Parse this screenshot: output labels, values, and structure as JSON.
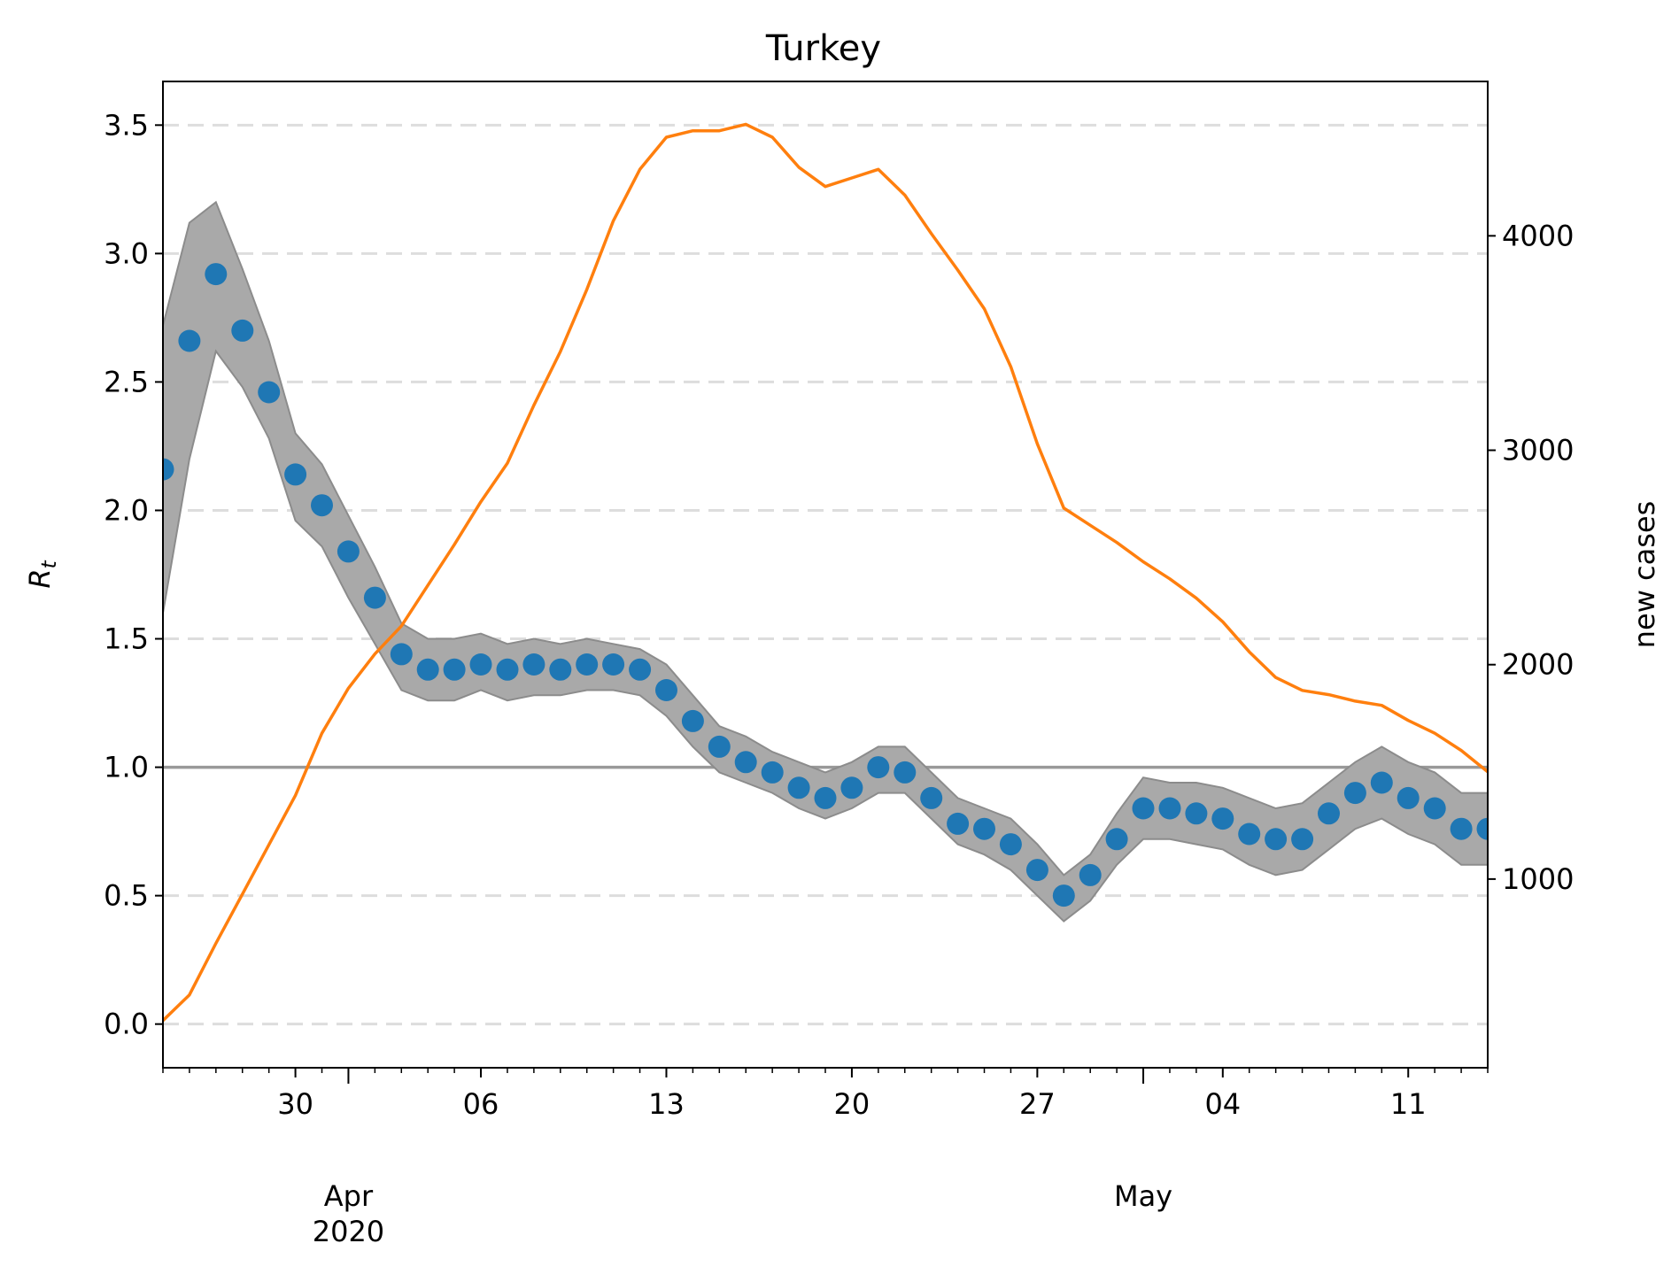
{
  "chart_data": {
    "type": "line",
    "title": "Turkey",
    "ylabel_left": "R",
    "ylabel_left_sub": "t",
    "ylabel_right": "new cases",
    "ylim_left": [
      -0.17,
      3.67
    ],
    "ylim_right": [
      120,
      4720
    ],
    "x_start": "2020-03-25",
    "x_end": "2020-05-14",
    "yticks_left": [
      "0.0",
      "0.5",
      "1.0",
      "1.5",
      "2.0",
      "2.5",
      "3.0",
      "3.5"
    ],
    "yticks_right": [
      "1000",
      "2000",
      "3000",
      "4000"
    ],
    "x_minor_tick_labels": [
      {
        "date": "2020-03-30",
        "label": "30"
      },
      {
        "date": "2020-04-06",
        "label": "06"
      },
      {
        "date": "2020-04-13",
        "label": "13"
      },
      {
        "date": "2020-04-20",
        "label": "20"
      },
      {
        "date": "2020-04-27",
        "label": "27"
      },
      {
        "date": "2020-05-04",
        "label": "04"
      },
      {
        "date": "2020-05-11",
        "label": "11"
      }
    ],
    "x_major_tick_labels": [
      {
        "date": "2020-04-01",
        "label": "Apr\n2020"
      },
      {
        "date": "2020-05-01",
        "label": "May"
      }
    ],
    "grid": "horizontal dashed",
    "reference_line": 1.0,
    "colors": {
      "rt_points": "#1f77b4",
      "band": "#a9a9a9",
      "band_edge": "#8c8c8c",
      "cases_line": "#ff7f0e",
      "reference": "#999999",
      "grid": "#dddddd"
    },
    "series": [
      {
        "kind": "points",
        "axis": "left",
        "dates": [
          "2020-03-25",
          "2020-03-26",
          "2020-03-27",
          "2020-03-28",
          "2020-03-29",
          "2020-03-30",
          "2020-03-31",
          "2020-04-01",
          "2020-04-02",
          "2020-04-03",
          "2020-04-04",
          "2020-04-05",
          "2020-04-06",
          "2020-04-07",
          "2020-04-08",
          "2020-04-09",
          "2020-04-10",
          "2020-04-11",
          "2020-04-12",
          "2020-04-13",
          "2020-04-14",
          "2020-04-15",
          "2020-04-16",
          "2020-04-17",
          "2020-04-18",
          "2020-04-19",
          "2020-04-20",
          "2020-04-21",
          "2020-04-22",
          "2020-04-23",
          "2020-04-24",
          "2020-04-25",
          "2020-04-26",
          "2020-04-27",
          "2020-04-28",
          "2020-04-29",
          "2020-04-30",
          "2020-05-01",
          "2020-05-02",
          "2020-05-03",
          "2020-05-04",
          "2020-05-05",
          "2020-05-06",
          "2020-05-07",
          "2020-05-08",
          "2020-05-09",
          "2020-05-10",
          "2020-05-11",
          "2020-05-12",
          "2020-05-13",
          "2020-05-14"
        ],
        "values": [
          2.16,
          2.66,
          2.92,
          2.7,
          2.46,
          2.14,
          2.02,
          1.84,
          1.66,
          1.44,
          1.38,
          1.38,
          1.4,
          1.38,
          1.4,
          1.38,
          1.4,
          1.4,
          1.38,
          1.3,
          1.18,
          1.08,
          1.02,
          0.98,
          0.92,
          0.88,
          0.92,
          1.0,
          0.98,
          0.88,
          0.78,
          0.76,
          0.7,
          0.6,
          0.5,
          0.58,
          0.72,
          0.84,
          0.84,
          0.82,
          0.8,
          0.74,
          0.72,
          0.72,
          0.82,
          0.9,
          0.94,
          0.88,
          0.84,
          0.76,
          0.76
        ],
        "lower": [
          1.6,
          2.2,
          2.62,
          2.48,
          2.28,
          1.96,
          1.86,
          1.66,
          1.48,
          1.3,
          1.26,
          1.26,
          1.3,
          1.26,
          1.28,
          1.28,
          1.3,
          1.3,
          1.28,
          1.2,
          1.08,
          0.98,
          0.94,
          0.9,
          0.84,
          0.8,
          0.84,
          0.9,
          0.9,
          0.8,
          0.7,
          0.66,
          0.6,
          0.5,
          0.4,
          0.48,
          0.62,
          0.72,
          0.72,
          0.7,
          0.68,
          0.62,
          0.58,
          0.6,
          0.68,
          0.76,
          0.8,
          0.74,
          0.7,
          0.62,
          0.62
        ],
        "upper": [
          2.72,
          3.12,
          3.2,
          2.94,
          2.66,
          2.3,
          2.18,
          1.98,
          1.78,
          1.56,
          1.5,
          1.5,
          1.52,
          1.48,
          1.5,
          1.48,
          1.5,
          1.48,
          1.46,
          1.4,
          1.28,
          1.16,
          1.12,
          1.06,
          1.02,
          0.98,
          1.02,
          1.08,
          1.08,
          0.98,
          0.88,
          0.84,
          0.8,
          0.7,
          0.58,
          0.66,
          0.82,
          0.96,
          0.94,
          0.94,
          0.92,
          0.88,
          0.84,
          0.86,
          0.94,
          1.02,
          1.08,
          1.02,
          0.98,
          0.9,
          0.9
        ]
      },
      {
        "kind": "line",
        "axis": "right",
        "dates": [
          "2020-03-25",
          "2020-03-26",
          "2020-03-27",
          "2020-03-28",
          "2020-03-29",
          "2020-03-30",
          "2020-03-31",
          "2020-04-01",
          "2020-04-02",
          "2020-04-03",
          "2020-04-04",
          "2020-04-05",
          "2020-04-06",
          "2020-04-07",
          "2020-04-08",
          "2020-04-09",
          "2020-04-10",
          "2020-04-11",
          "2020-04-12",
          "2020-04-13",
          "2020-04-14",
          "2020-04-15",
          "2020-04-16",
          "2020-04-17",
          "2020-04-18",
          "2020-04-19",
          "2020-04-20",
          "2020-04-21",
          "2020-04-22",
          "2020-04-23",
          "2020-04-24",
          "2020-04-25",
          "2020-04-26",
          "2020-04-27",
          "2020-04-28",
          "2020-04-29",
          "2020-04-30",
          "2020-05-01",
          "2020-05-02",
          "2020-05-03",
          "2020-05-04",
          "2020-05-05",
          "2020-05-06",
          "2020-05-07",
          "2020-05-08",
          "2020-05-09",
          "2020-05-10",
          "2020-05-11",
          "2020-05-12",
          "2020-05-13",
          "2020-05-14"
        ],
        "values": [
          340,
          460,
          700,
          930,
          1160,
          1390,
          1680,
          1890,
          2050,
          2180,
          2370,
          2560,
          2760,
          2940,
          3210,
          3460,
          3750,
          4070,
          4310,
          4460,
          4490,
          4490,
          4520,
          4460,
          4320,
          4230,
          4270,
          4310,
          4190,
          4010,
          3840,
          3660,
          3390,
          3030,
          2730,
          2650,
          2570,
          2480,
          2400,
          2310,
          2200,
          2060,
          1940,
          1880,
          1860,
          1830,
          1810,
          1740,
          1680,
          1600,
          1500
        ]
      }
    ]
  }
}
